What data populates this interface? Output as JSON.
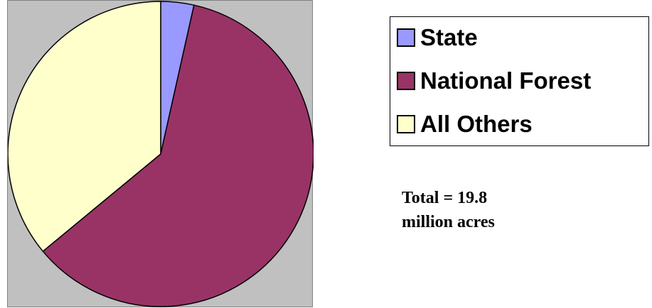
{
  "chart_data": {
    "type": "pie",
    "title": "",
    "series": [
      {
        "name": "State",
        "value": 3.5,
        "color": "#9999ff"
      },
      {
        "name": "National Forest",
        "value": 60.5,
        "color": "#993366"
      },
      {
        "name": "All Others",
        "value": 36.0,
        "color": "#ffffcc"
      }
    ],
    "legend_position": "right",
    "plot_background": "#c0c0c0"
  },
  "annotation": {
    "line1": "Total = 19.8",
    "line2": "million acres"
  }
}
